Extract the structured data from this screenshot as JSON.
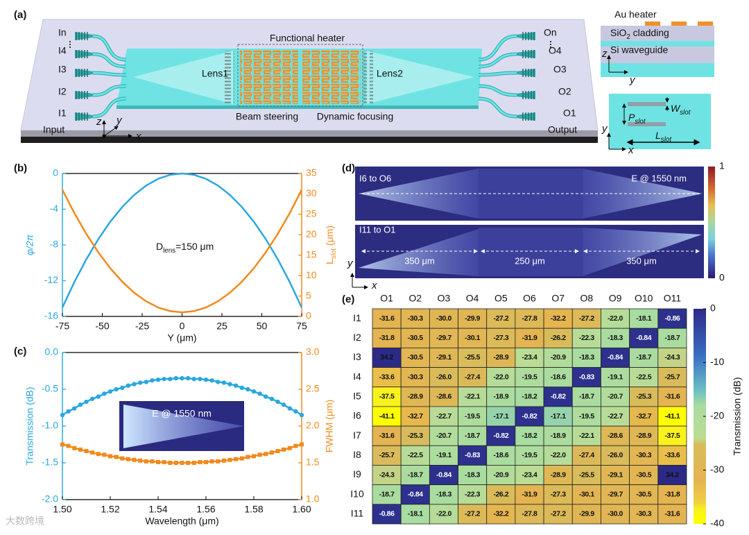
{
  "panel_labels": [
    "(a)",
    "(b)",
    "(c)",
    "(d)",
    "(e)"
  ],
  "panel_a": {
    "heater_label": "Functional heater",
    "lens1": "Lens1",
    "lens2": "Lens2",
    "beam": "Beam steering",
    "focus": "Dynamic focusing",
    "inputs": [
      "In",
      "I4",
      "I3",
      "I2",
      "I1"
    ],
    "input_label": "Input",
    "outputs": [
      "On",
      "O4",
      "O3",
      "O2",
      "O1"
    ],
    "output_label": "Output",
    "axes": [
      "z",
      "y",
      "x"
    ],
    "cross_section": {
      "au": "Au heater",
      "sio2": [
        "SiO",
        "2",
        " cladding"
      ],
      "si": "Si waveguide",
      "axes": [
        "z",
        "y"
      ]
    },
    "top_view": {
      "w": [
        "W",
        "slot"
      ],
      "p": [
        "P",
        "slot"
      ],
      "l": [
        "L",
        "slot"
      ],
      "axes": [
        "y",
        "x"
      ]
    }
  },
  "chart_data": [
    {
      "type": "line",
      "xlabel": "Y (μm)",
      "ylabel": "φ/2π",
      "y2label": [
        "L",
        "slot",
        " (μm)"
      ],
      "annotation": [
        "D",
        "lens",
        "=150 μm"
      ],
      "x": [
        -75,
        -67.5,
        -60,
        -52.5,
        -45,
        -37.5,
        -30,
        -22.5,
        -15,
        -7.5,
        0,
        7.5,
        15,
        22.5,
        30,
        37.5,
        45,
        52.5,
        60,
        67.5,
        75
      ],
      "xlim": [
        -75,
        75
      ],
      "xticks": [
        -75,
        -50,
        -25,
        0,
        25,
        50,
        75
      ],
      "ylim": [
        -16,
        0
      ],
      "yticks": [
        0,
        -4,
        -8,
        -12,
        -16
      ],
      "y2lim": [
        0,
        35
      ],
      "y2ticks": [
        0,
        5,
        10,
        15,
        20,
        25,
        30,
        35
      ],
      "series": [
        {
          "color": "#2aa7e0",
          "values": [
            -15,
            -12.15,
            -9.6,
            -7.35,
            -5.4,
            -3.75,
            -2.4,
            -1.35,
            -0.6,
            -0.15,
            0,
            -0.15,
            -0.6,
            -1.35,
            -2.4,
            -3.75,
            -5.4,
            -7.35,
            -9.6,
            -12.15,
            -15
          ]
        },
        {
          "color": "#f08a1c",
          "axis": "y2",
          "values": [
            31,
            25.3,
            20.2,
            15.7,
            11.8,
            8.5,
            5.8,
            3.7,
            2.2,
            1.3,
            1,
            1.3,
            2.2,
            3.7,
            5.8,
            8.5,
            11.8,
            15.7,
            20.2,
            25.3,
            31
          ]
        }
      ]
    },
    {
      "type": "line",
      "xlabel": "Wavelength (μm)",
      "ylabel": "Transmission (dB)",
      "y2label": "FWHM (μm)",
      "inset_label": "E @ 1550 nm",
      "x": [
        1.5,
        1.5025,
        1.505,
        1.5075,
        1.51,
        1.5125,
        1.515,
        1.5175,
        1.52,
        1.5225,
        1.525,
        1.5275,
        1.53,
        1.5325,
        1.535,
        1.5375,
        1.54,
        1.5425,
        1.545,
        1.5475,
        1.55,
        1.5525,
        1.555,
        1.5575,
        1.56,
        1.5625,
        1.565,
        1.5675,
        1.57,
        1.5725,
        1.575,
        1.5775,
        1.58,
        1.5825,
        1.585,
        1.5875,
        1.59,
        1.5925,
        1.595,
        1.5975,
        1.6
      ],
      "xlim": [
        1.5,
        1.6
      ],
      "xticks": [
        {
          "value": 1.5,
          "label": "1.50"
        },
        1.52,
        1.54,
        1.56,
        1.58,
        {
          "value": 1.6,
          "label": "1.60"
        }
      ],
      "ylim": [
        -2,
        0
      ],
      "yticks": [
        {
          "value": 0,
          "label": "0.0"
        },
        -0.5,
        {
          "value": -1,
          "label": "-1.0"
        },
        -1.5,
        {
          "value": -2,
          "label": "-2.0"
        }
      ],
      "y2lim": [
        1,
        3
      ],
      "y2ticks": [
        {
          "value": 1,
          "label": "1.0"
        },
        1.5,
        {
          "value": 2,
          "label": "2.0"
        },
        2.5,
        {
          "value": 3,
          "label": "3.0"
        }
      ],
      "series": [
        {
          "color": "#2aa7e0",
          "marker": "circle",
          "values": [
            -0.85,
            -0.8,
            -0.76,
            -0.71,
            -0.67,
            -0.63,
            -0.6,
            -0.56,
            -0.53,
            -0.5,
            -0.48,
            -0.45,
            -0.43,
            -0.41,
            -0.4,
            -0.38,
            -0.37,
            -0.36,
            -0.36,
            -0.35,
            -0.35,
            -0.35,
            -0.36,
            -0.36,
            -0.37,
            -0.38,
            -0.4,
            -0.41,
            -0.43,
            -0.45,
            -0.48,
            -0.5,
            -0.53,
            -0.56,
            -0.6,
            -0.63,
            -0.67,
            -0.71,
            -0.76,
            -0.8,
            -0.85
          ]
        },
        {
          "color": "#f08a1c",
          "marker": "square",
          "axis": "y2",
          "values": [
            1.75,
            1.73,
            1.7,
            1.68,
            1.66,
            1.64,
            1.62,
            1.61,
            1.59,
            1.58,
            1.56,
            1.55,
            1.54,
            1.53,
            1.52,
            1.52,
            1.51,
            1.51,
            1.5,
            1.5,
            1.5,
            1.5,
            1.5,
            1.51,
            1.51,
            1.52,
            1.52,
            1.53,
            1.54,
            1.55,
            1.56,
            1.58,
            1.59,
            1.61,
            1.62,
            1.64,
            1.66,
            1.68,
            1.7,
            1.73,
            1.75
          ]
        }
      ]
    },
    {
      "type": "heatmap",
      "colorbar_label": "Transmission (dB)",
      "columns": [
        "O1",
        "O2",
        "O3",
        "O4",
        "O5",
        "O6",
        "O7",
        "O8",
        "O9",
        "O10",
        "O11"
      ],
      "rows": [
        "I1",
        "I2",
        "I3",
        "I4",
        "I5",
        "I6",
        "I7",
        "I8",
        "I9",
        "I10",
        "I11"
      ],
      "clim": [
        -40,
        0
      ],
      "cticks": [
        0,
        -10,
        -20,
        -30,
        -40
      ],
      "values": [
        [
          -31.6,
          -30.3,
          -30.0,
          -29.9,
          -27.2,
          -27.8,
          -32.2,
          -27.2,
          -22.0,
          -18.1,
          -0.86
        ],
        [
          -31.8,
          -30.5,
          -29.7,
          -30.1,
          -27.3,
          -31.9,
          -26.2,
          -22.3,
          -18.3,
          -0.84,
          -18.7
        ],
        [
          34.2,
          -30.5,
          -29.1,
          -25.5,
          -28.9,
          -23.4,
          -20.9,
          -18.3,
          -0.84,
          -18.7,
          -24.3
        ],
        [
          -33.6,
          -30.3,
          -26.0,
          -27.4,
          -22.0,
          -19.5,
          -18.6,
          -0.83,
          -19.1,
          -22.5,
          -25.7
        ],
        [
          -37.5,
          -28.9,
          -28.6,
          -22.1,
          -18.9,
          -18.2,
          -0.82,
          -18.7,
          -20.7,
          -25.3,
          -31.6
        ],
        [
          -41.1,
          -32.7,
          -22.7,
          -19.5,
          -17.1,
          -0.82,
          -17.1,
          -19.5,
          -22.7,
          -32.7,
          -41.1
        ],
        [
          -31.6,
          -25.3,
          -20.7,
          -18.7,
          -0.82,
          -18.2,
          -18.9,
          -22.1,
          -28.6,
          -28.9,
          -37.5
        ],
        [
          -25.7,
          -22.5,
          -19.1,
          -0.83,
          -18.6,
          -19.5,
          -22.0,
          -27.4,
          -26.0,
          -30.3,
          -33.6
        ],
        [
          -24.3,
          -18.7,
          -0.84,
          -18.3,
          -20.9,
          -23.4,
          -28.9,
          -25.5,
          -29.1,
          -30.5,
          34.2
        ],
        [
          -18.7,
          -0.84,
          -18.3,
          -22.3,
          -26.2,
          -31.9,
          -27.3,
          -30.1,
          -29.7,
          -30.5,
          -31.8
        ],
        [
          -0.86,
          -18.1,
          -22.0,
          -27.2,
          -32.2,
          -27.8,
          -27.2,
          -29.9,
          -30.0,
          -30.3,
          -31.6
        ]
      ],
      "value_labels": [
        [
          "-31.6",
          "-30.3",
          "-30.0",
          "-29.9",
          "-27.2",
          "-27.8",
          "-32.2",
          "-27.2",
          "-22.0",
          "-18.1",
          "-0.86"
        ],
        [
          "-31.8",
          "-30.5",
          "-29.7",
          "-30.1",
          "-27.3",
          "-31.9",
          "-26.2",
          "-22.3",
          "-18.3",
          "-0.84",
          "-18.7"
        ],
        [
          "34.2",
          "-30.5",
          "-29.1",
          "-25.5",
          "-28.9",
          "-23.4",
          "-20.9",
          "-18.3",
          "-0.84",
          "-18.7",
          "-24.3"
        ],
        [
          "-33.6",
          "-30.3",
          "-26.0",
          "-27.4",
          "-22.0",
          "-19.5",
          "-18.6",
          "-0.83",
          "-19.1",
          "-22.5",
          "-25.7"
        ],
        [
          "-37.5",
          "-28.9",
          "-28.6",
          "-22.1",
          "-18.9",
          "-18.2",
          "-0.82",
          "-18.7",
          "-20.7",
          "-25.3",
          "-31.6"
        ],
        [
          "-41.1",
          "-32.7",
          "-22.7",
          "-19.5",
          "-17.1",
          "-0.82",
          "-17.1",
          "-19.5",
          "-22.7",
          "-32.7",
          "-41.1"
        ],
        [
          "-31.6",
          "-25.3",
          "-20.7",
          "-18.7",
          "-0.82",
          "-18.2",
          "-18.9",
          "-22.1",
          "-28.6",
          "-28.9",
          "-37.5"
        ],
        [
          "-25.7",
          "-22.5",
          "-19.1",
          "-0.83",
          "-18.6",
          "-19.5",
          "-22.0",
          "-27.4",
          "-26.0",
          "-30.3",
          "-33.6"
        ],
        [
          "-24.3",
          "-18.7",
          "-0.84",
          "-18.3",
          "-20.9",
          "-23.4",
          "-28.9",
          "-25.5",
          "-29.1",
          "-30.5",
          "34.2"
        ],
        [
          "-18.7",
          "-0.84",
          "-18.3",
          "-22.3",
          "-26.2",
          "-31.9",
          "-27.3",
          "-30.1",
          "-29.7",
          "-30.5",
          "-31.8"
        ],
        [
          "-0.86",
          "-18.1",
          "-22.0",
          "-27.2",
          "-32.2",
          "-27.8",
          "-27.2",
          "-29.9",
          "-30.0",
          "-30.3",
          "-31.6"
        ]
      ]
    }
  ],
  "panel_d": {
    "top_label": "I6 to O6",
    "field_label": "E @ 1550 nm",
    "bottom_label": "I11 to O1",
    "distances": [
      "350 μm",
      "250 μm",
      "350 μm"
    ],
    "axes": [
      "y",
      "x"
    ],
    "clim": [
      0,
      1
    ],
    "cticks": [
      0,
      1
    ]
  },
  "watermark": "大数跨境"
}
